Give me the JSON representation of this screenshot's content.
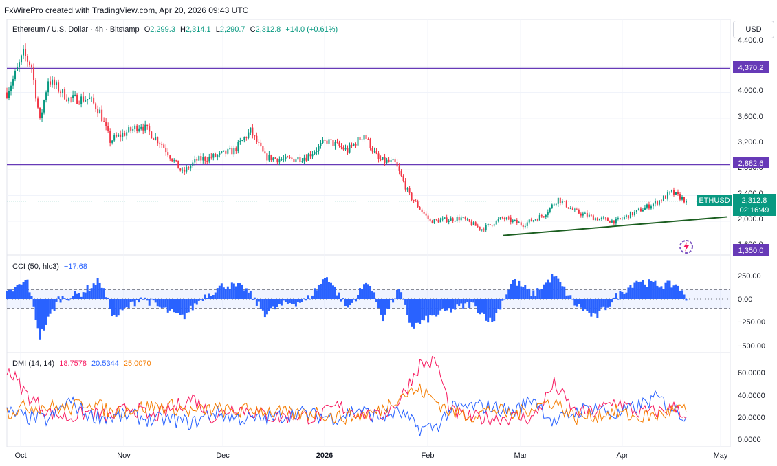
{
  "header": {
    "watermark": "FxWirePro created with TradingView.com, Apr 20, 2026 09:43 UTC"
  },
  "symbol": {
    "name": "Ethereum / U.S. Dollar · 4h · Bitstamp",
    "o_label": "O",
    "o": "2,299.3",
    "h_label": "H",
    "h": "2,314.1",
    "l_label": "L",
    "l": "2,290.7",
    "c_label": "C",
    "c": "2,312.8",
    "change": "+14.0 (+0.61%)"
  },
  "currency_button": "USD",
  "price_axis": {
    "ticks": [
      "4,400.0",
      "4,000.0",
      "3,600.0",
      "3,200.0",
      "2,800.0",
      "2,400.0",
      "2,000.0",
      "1,600.0"
    ],
    "tag_4370": "4,370.2",
    "tag_2882": "2,882.6",
    "tag_1350": "1,350.0",
    "ticker_tag": "ETHUSD",
    "last_price": "2,312.8",
    "countdown": "02:16:49"
  },
  "cci": {
    "label": "CCI (50, hlc3)",
    "value": "−17.68",
    "ticks": [
      "250.00",
      "0.00",
      "−250.00",
      "−500.00"
    ]
  },
  "dmi": {
    "label": "DMI (14, 14)",
    "plus": "18.7578",
    "minus": "20.5344",
    "adx": "25.0070",
    "ticks": [
      "60.0000",
      "40.0000",
      "20.0000",
      "0.0000"
    ]
  },
  "time_axis": [
    "Oct",
    "Nov",
    "Dec",
    "2026",
    "Feb",
    "Mar",
    "Apr",
    "May"
  ],
  "colors": {
    "up": "#089981",
    "down": "#f23645",
    "level": "#673ab7",
    "trend": "#1b5e20",
    "cci": "#2962ff",
    "dmi_plus": "#f7195f",
    "dmi_minus": "#2962ff",
    "adx": "#f57c00"
  },
  "chart_data": [
    {
      "type": "candlestick",
      "title": "Ethereum / U.S. Dollar · 4h · Bitstamp",
      "x": [
        "Oct",
        "Nov",
        "Dec",
        "2026",
        "Feb",
        "Mar",
        "Apr",
        "May"
      ],
      "ylim": [
        1500,
        4600
      ],
      "anchors": [
        {
          "t": 0,
          "p": 4000
        },
        {
          "t": 0.3,
          "p": 4200
        },
        {
          "t": 0.8,
          "p": 4600
        },
        {
          "t": 1.2,
          "p": 4400
        },
        {
          "t": 1.6,
          "p": 3550
        },
        {
          "t": 2.0,
          "p": 4200
        },
        {
          "t": 3.0,
          "p": 3900
        },
        {
          "t": 4.0,
          "p": 3900
        },
        {
          "t": 4.5,
          "p": 3700
        },
        {
          "t": 5.0,
          "p": 3250
        },
        {
          "t": 6.5,
          "p": 3500
        },
        {
          "t": 7.5,
          "p": 3200
        },
        {
          "t": 8.5,
          "p": 2750
        },
        {
          "t": 9.2,
          "p": 2950
        },
        {
          "t": 10.0,
          "p": 3000
        },
        {
          "t": 11.0,
          "p": 3100
        },
        {
          "t": 11.8,
          "p": 3400
        },
        {
          "t": 12.5,
          "p": 3000
        },
        {
          "t": 13.5,
          "p": 2950
        },
        {
          "t": 14.5,
          "p": 3000
        },
        {
          "t": 15.5,
          "p": 3250
        },
        {
          "t": 16.5,
          "p": 3100
        },
        {
          "t": 17.3,
          "p": 3350
        },
        {
          "t": 18.0,
          "p": 2950
        },
        {
          "t": 18.8,
          "p": 2900
        },
        {
          "t": 19.5,
          "p": 2400
        },
        {
          "t": 20.5,
          "p": 2000
        },
        {
          "t": 22.0,
          "p": 2050
        },
        {
          "t": 23.0,
          "p": 1880
        },
        {
          "t": 24.0,
          "p": 2050
        },
        {
          "t": 25.0,
          "p": 1950
        },
        {
          "t": 26.0,
          "p": 2100
        },
        {
          "t": 26.7,
          "p": 2350
        },
        {
          "t": 27.5,
          "p": 2150
        },
        {
          "t": 28.5,
          "p": 2050
        },
        {
          "t": 29.5,
          "p": 2000
        },
        {
          "t": 30.5,
          "p": 2150
        },
        {
          "t": 31.5,
          "p": 2300
        },
        {
          "t": 32.2,
          "p": 2450
        },
        {
          "t": 32.9,
          "p": 2312.8
        }
      ],
      "levels": [
        4370.2,
        2882.6
      ],
      "trendline": [
        {
          "x": "Feb",
          "y": 1780
        },
        {
          "x": "May",
          "y": 2070
        }
      ],
      "last": 2312.8
    },
    {
      "type": "bar",
      "title": "CCI (50, hlc3)",
      "ylim": [
        -520,
        330
      ],
      "bands": [
        100,
        -100
      ],
      "anchors": [
        {
          "t": 0,
          "v": 50
        },
        {
          "t": 1.0,
          "v": 200
        },
        {
          "t": 1.6,
          "v": -400
        },
        {
          "t": 2.5,
          "v": 0
        },
        {
          "t": 3.5,
          "v": 50
        },
        {
          "t": 4.5,
          "v": 200
        },
        {
          "t": 5.2,
          "v": -200
        },
        {
          "t": 6.5,
          "v": 20
        },
        {
          "t": 7.5,
          "v": -100
        },
        {
          "t": 8.5,
          "v": -200
        },
        {
          "t": 9.5,
          "v": 20
        },
        {
          "t": 10.5,
          "v": 150
        },
        {
          "t": 11.5,
          "v": 120
        },
        {
          "t": 12.5,
          "v": -150
        },
        {
          "t": 13.5,
          "v": -50
        },
        {
          "t": 14.5,
          "v": -20
        },
        {
          "t": 15.5,
          "v": 250
        },
        {
          "t": 16.5,
          "v": -100
        },
        {
          "t": 17.5,
          "v": 200
        },
        {
          "t": 18.2,
          "v": -200
        },
        {
          "t": 19.0,
          "v": 100
        },
        {
          "t": 19.6,
          "v": -300
        },
        {
          "t": 21.0,
          "v": -150
        },
        {
          "t": 22.5,
          "v": -50
        },
        {
          "t": 23.5,
          "v": -250
        },
        {
          "t": 24.5,
          "v": 200
        },
        {
          "t": 25.5,
          "v": 50
        },
        {
          "t": 26.5,
          "v": 250
        },
        {
          "t": 27.5,
          "v": -50
        },
        {
          "t": 28.5,
          "v": -200
        },
        {
          "t": 29.5,
          "v": 20
        },
        {
          "t": 30.5,
          "v": 200
        },
        {
          "t": 31.5,
          "v": 150
        },
        {
          "t": 32.5,
          "v": 150
        },
        {
          "t": 32.9,
          "v": -17.68
        }
      ]
    },
    {
      "type": "line",
      "title": "DMI (14, 14)",
      "ylim": [
        -5,
        68
      ],
      "series": [
        {
          "name": "18.7578",
          "color": "#f7195f",
          "anchors": [
            [
              0,
              65
            ],
            [
              1,
              40
            ],
            [
              2,
              25
            ],
            [
              3,
              20
            ],
            [
              4,
              25
            ],
            [
              5,
              20
            ],
            [
              6,
              30
            ],
            [
              7,
              20
            ],
            [
              8,
              28
            ],
            [
              9,
              38
            ],
            [
              10,
              20
            ],
            [
              11,
              30
            ],
            [
              12,
              25
            ],
            [
              13,
              20
            ],
            [
              14,
              22
            ],
            [
              15,
              20
            ],
            [
              16,
              30
            ],
            [
              17,
              25
            ],
            [
              18,
              20
            ],
            [
              19,
              35
            ],
            [
              20,
              68
            ],
            [
              20.8,
              70
            ],
            [
              21.5,
              25
            ],
            [
              22.5,
              20
            ],
            [
              23.5,
              20
            ],
            [
              24.5,
              20
            ],
            [
              25.5,
              20
            ],
            [
              26.5,
              50
            ],
            [
              27.5,
              25
            ],
            [
              28.5,
              25
            ],
            [
              29.5,
              35
            ],
            [
              30.5,
              25
            ],
            [
              31.5,
              25
            ],
            [
              32.5,
              30
            ],
            [
              32.9,
              18.7578
            ]
          ]
        },
        {
          "name": "20.5344",
          "color": "#2962ff",
          "anchors": [
            [
              0,
              25
            ],
            [
              1,
              20
            ],
            [
              2,
              18
            ],
            [
              3,
              35
            ],
            [
              4,
              22
            ],
            [
              5,
              20
            ],
            [
              6,
              22
            ],
            [
              7,
              18
            ],
            [
              8,
              18
            ],
            [
              9,
              15
            ],
            [
              10,
              25
            ],
            [
              11,
              20
            ],
            [
              12,
              18
            ],
            [
              13,
              20
            ],
            [
              14,
              25
            ],
            [
              15,
              22
            ],
            [
              16,
              20
            ],
            [
              17,
              28
            ],
            [
              18,
              20
            ],
            [
              19,
              25
            ],
            [
              20,
              10
            ],
            [
              20.8,
              12
            ],
            [
              21.5,
              28
            ],
            [
              22.5,
              30
            ],
            [
              23.5,
              30
            ],
            [
              24.5,
              25
            ],
            [
              25.5,
              38
            ],
            [
              26.5,
              15
            ],
            [
              27.5,
              25
            ],
            [
              28.5,
              30
            ],
            [
              29.5,
              22
            ],
            [
              30.5,
              30
            ],
            [
              31.5,
              38
            ],
            [
              32.5,
              25
            ],
            [
              32.9,
              20.5344
            ]
          ]
        },
        {
          "name": "25.0070",
          "color": "#f57c00",
          "anchors": [
            [
              0,
              25
            ],
            [
              1,
              30
            ],
            [
              2,
              30
            ],
            [
              3,
              28
            ],
            [
              4,
              35
            ],
            [
              5,
              25
            ],
            [
              6,
              28
            ],
            [
              7,
              30
            ],
            [
              8,
              30
            ],
            [
              9,
              25
            ],
            [
              10,
              28
            ],
            [
              11,
              25
            ],
            [
              12,
              28
            ],
            [
              13,
              25
            ],
            [
              14,
              22
            ],
            [
              15,
              25
            ],
            [
              16,
              20
            ],
            [
              17,
              22
            ],
            [
              18,
              25
            ],
            [
              19,
              40
            ],
            [
              20,
              45
            ],
            [
              20.8,
              35
            ],
            [
              21.5,
              25
            ],
            [
              22.5,
              22
            ],
            [
              23.5,
              28
            ],
            [
              24.5,
              22
            ],
            [
              25.5,
              30
            ],
            [
              26.5,
              35
            ],
            [
              27.5,
              20
            ],
            [
              28.5,
              22
            ],
            [
              29.5,
              25
            ],
            [
              30.5,
              20
            ],
            [
              31.5,
              22
            ],
            [
              32.5,
              28
            ],
            [
              32.9,
              25.007
            ]
          ]
        }
      ]
    }
  ]
}
